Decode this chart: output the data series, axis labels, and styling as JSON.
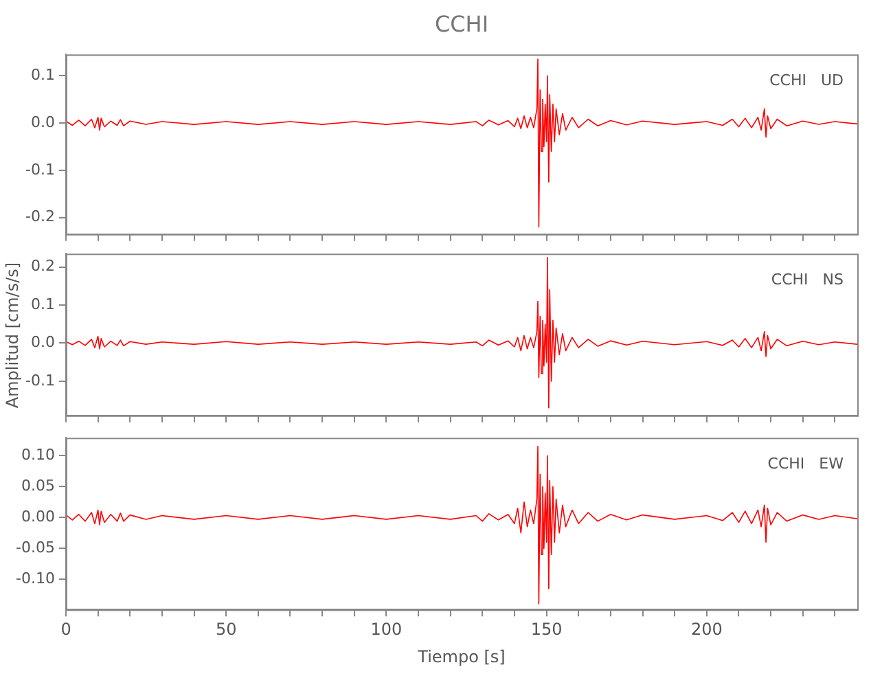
{
  "chart_data": [
    {
      "type": "line",
      "title": "CCHI",
      "annotations": [
        "CCHI   UD"
      ],
      "tick_labels": "y",
      "x": [
        0,
        2,
        4,
        6,
        8,
        9,
        10,
        10.5,
        11,
        12,
        14,
        16,
        17,
        18,
        20,
        25,
        30,
        40,
        50,
        60,
        70,
        80,
        90,
        100,
        110,
        120,
        128,
        130,
        132,
        135,
        138,
        140,
        141,
        142,
        143,
        144,
        145,
        146,
        147,
        147.3,
        147.6,
        148,
        148.4,
        148.8,
        149.2,
        149.6,
        150,
        150.3,
        150.7,
        151,
        151.5,
        152,
        152.5,
        153,
        154,
        155,
        156,
        158,
        160,
        163,
        166,
        170,
        175,
        180,
        190,
        200,
        205,
        208,
        210,
        212,
        214,
        216,
        217,
        218,
        218.5,
        219,
        220,
        222,
        225,
        230,
        235,
        240,
        247
      ],
      "series": [
        {
          "color": "#ff0000",
          "values": [
            0.004,
            -0.005,
            0.006,
            -0.006,
            0.008,
            -0.01,
            0.012,
            -0.015,
            0.01,
            -0.008,
            0.004,
            -0.005,
            0.007,
            -0.006,
            0.004,
            -0.003,
            0.003,
            -0.003,
            0.003,
            -0.003,
            0.003,
            -0.003,
            0.003,
            -0.003,
            0.003,
            -0.003,
            0.003,
            -0.006,
            0.006,
            -0.004,
            0.005,
            -0.008,
            0.01,
            -0.012,
            0.015,
            -0.01,
            0.012,
            -0.01,
            0.03,
            0.135,
            -0.22,
            0.07,
            -0.06,
            0.05,
            -0.05,
            0.04,
            -0.04,
            0.1,
            -0.125,
            0.06,
            -0.06,
            0.04,
            -0.04,
            0.03,
            -0.025,
            0.02,
            -0.015,
            0.012,
            -0.01,
            0.008,
            -0.006,
            0.005,
            -0.004,
            0.004,
            -0.003,
            0.003,
            -0.005,
            0.008,
            -0.008,
            0.01,
            -0.01,
            0.012,
            -0.015,
            0.03,
            -0.03,
            0.015,
            -0.012,
            0.008,
            -0.006,
            0.004,
            -0.003,
            0.003,
            -0.002
          ]
        }
      ],
      "xlim": [
        0,
        247
      ],
      "xticks": [
        0,
        {
          "value": 10,
          "label": null
        },
        {
          "value": 20,
          "label": null
        },
        {
          "value": 30,
          "label": null
        },
        {
          "value": 40,
          "label": null
        },
        50,
        {
          "value": 60,
          "label": null
        },
        {
          "value": 70,
          "label": null
        },
        {
          "value": 80,
          "label": null
        },
        {
          "value": 90,
          "label": null
        },
        100,
        {
          "value": 110,
          "label": null
        },
        {
          "value": 120,
          "label": null
        },
        {
          "value": 130,
          "label": null
        },
        {
          "value": 140,
          "label": null
        },
        150,
        {
          "value": 160,
          "label": null
        },
        {
          "value": 170,
          "label": null
        },
        {
          "value": 180,
          "label": null
        },
        {
          "value": 190,
          "label": null
        },
        200,
        {
          "value": 210,
          "label": null
        },
        {
          "value": 220,
          "label": null
        },
        {
          "value": 230,
          "label": null
        },
        {
          "value": 240,
          "label": null
        }
      ],
      "ylim": [
        -0.235,
        0.145
      ],
      "yticks": [
        {
          "value": -0.2,
          "label": "-0.2"
        },
        {
          "value": -0.1,
          "label": "-0.1"
        },
        {
          "value": 0,
          "label": "0.0"
        },
        {
          "value": 0.1,
          "label": "0.1"
        }
      ]
    },
    {
      "type": "line",
      "ylabel": "Amplitud [cm/s/s]",
      "annotations": [
        "CCHI   NS"
      ],
      "tick_labels": "y",
      "x": [
        0,
        2,
        4,
        6,
        8,
        9,
        10,
        10.5,
        11,
        12,
        14,
        16,
        17,
        18,
        20,
        25,
        30,
        40,
        50,
        60,
        70,
        80,
        90,
        100,
        110,
        120,
        128,
        130,
        132,
        135,
        138,
        140,
        141,
        142,
        143,
        144,
        145,
        146,
        147,
        147.3,
        147.6,
        148,
        148.4,
        148.8,
        149.2,
        149.6,
        150,
        150.3,
        150.7,
        151,
        151.5,
        152,
        152.5,
        153,
        154,
        155,
        156,
        158,
        160,
        163,
        166,
        170,
        175,
        180,
        190,
        200,
        205,
        208,
        210,
        212,
        214,
        216,
        217,
        218,
        218.5,
        219,
        220,
        222,
        225,
        230,
        235,
        240,
        247
      ],
      "series": [
        {
          "color": "#ff0000",
          "values": [
            0.004,
            -0.004,
            0.005,
            -0.006,
            0.01,
            -0.012,
            0.018,
            -0.015,
            0.012,
            -0.01,
            0.005,
            -0.006,
            0.008,
            -0.007,
            0.004,
            -0.003,
            0.003,
            -0.003,
            0.004,
            -0.003,
            0.003,
            -0.003,
            0.003,
            -0.003,
            0.003,
            -0.003,
            0.003,
            -0.007,
            0.008,
            -0.005,
            0.006,
            -0.01,
            0.015,
            -0.02,
            0.02,
            -0.015,
            0.015,
            -0.012,
            0.03,
            0.11,
            -0.09,
            0.07,
            -0.08,
            0.06,
            -0.06,
            0.05,
            -0.05,
            0.225,
            -0.17,
            0.14,
            -0.1,
            0.06,
            -0.05,
            0.04,
            -0.03,
            0.025,
            -0.02,
            0.015,
            -0.012,
            0.01,
            -0.008,
            0.006,
            -0.005,
            0.005,
            -0.004,
            0.004,
            -0.006,
            0.008,
            -0.01,
            0.012,
            -0.012,
            0.015,
            -0.02,
            0.03,
            -0.035,
            0.02,
            -0.015,
            0.01,
            -0.007,
            0.005,
            -0.004,
            0.003,
            -0.003
          ]
        }
      ],
      "xlim": [
        0,
        247
      ],
      "xticks": [
        0,
        {
          "value": 10,
          "label": null
        },
        {
          "value": 20,
          "label": null
        },
        {
          "value": 30,
          "label": null
        },
        {
          "value": 40,
          "label": null
        },
        50,
        {
          "value": 60,
          "label": null
        },
        {
          "value": 70,
          "label": null
        },
        {
          "value": 80,
          "label": null
        },
        {
          "value": 90,
          "label": null
        },
        100,
        {
          "value": 110,
          "label": null
        },
        {
          "value": 120,
          "label": null
        },
        {
          "value": 130,
          "label": null
        },
        {
          "value": 140,
          "label": null
        },
        150,
        {
          "value": 160,
          "label": null
        },
        {
          "value": 170,
          "label": null
        },
        {
          "value": 180,
          "label": null
        },
        {
          "value": 190,
          "label": null
        },
        200,
        {
          "value": 210,
          "label": null
        },
        {
          "value": 220,
          "label": null
        },
        {
          "value": 230,
          "label": null
        },
        {
          "value": 240,
          "label": null
        }
      ],
      "ylim": [
        -0.19,
        0.235
      ],
      "yticks": [
        {
          "value": -0.1,
          "label": "-0.1"
        },
        {
          "value": 0,
          "label": "0.0"
        },
        {
          "value": 0.1,
          "label": "0.1"
        },
        {
          "value": 0.2,
          "label": "0.2"
        }
      ]
    },
    {
      "type": "line",
      "xlabel": "Tiempo [s]",
      "annotations": [
        "CCHI   EW"
      ],
      "x": [
        0,
        2,
        4,
        6,
        8,
        9,
        10,
        10.5,
        11,
        12,
        14,
        16,
        17,
        18,
        20,
        25,
        30,
        40,
        50,
        60,
        70,
        80,
        90,
        100,
        110,
        120,
        128,
        130,
        132,
        135,
        138,
        140,
        141,
        142,
        143,
        144,
        145,
        146,
        147,
        147.3,
        147.6,
        148,
        148.4,
        148.8,
        149.2,
        149.6,
        150,
        150.3,
        150.7,
        151,
        151.5,
        152,
        152.5,
        153,
        154,
        155,
        156,
        158,
        160,
        163,
        166,
        170,
        175,
        180,
        190,
        200,
        205,
        208,
        210,
        212,
        214,
        216,
        217,
        218,
        218.5,
        219,
        220,
        222,
        225,
        230,
        235,
        240,
        247
      ],
      "series": [
        {
          "color": "#ff0000",
          "values": [
            0.004,
            -0.004,
            0.005,
            -0.006,
            0.008,
            -0.01,
            0.012,
            -0.012,
            0.01,
            -0.008,
            0.005,
            -0.006,
            0.007,
            -0.006,
            0.004,
            -0.003,
            0.003,
            -0.003,
            0.003,
            -0.003,
            0.003,
            -0.003,
            0.003,
            -0.003,
            0.003,
            -0.003,
            0.003,
            -0.006,
            0.006,
            -0.004,
            0.005,
            -0.01,
            0.015,
            -0.025,
            0.025,
            -0.015,
            0.012,
            -0.01,
            0.03,
            0.115,
            -0.14,
            0.07,
            -0.06,
            0.05,
            -0.05,
            0.04,
            -0.04,
            0.1,
            -0.115,
            0.06,
            -0.06,
            0.05,
            -0.04,
            0.03,
            -0.025,
            0.02,
            -0.015,
            0.012,
            -0.01,
            0.008,
            -0.006,
            0.005,
            -0.004,
            0.004,
            -0.003,
            0.003,
            -0.005,
            0.008,
            -0.008,
            0.01,
            -0.01,
            0.012,
            -0.015,
            0.02,
            -0.04,
            0.015,
            -0.012,
            0.008,
            -0.006,
            0.004,
            -0.003,
            0.003,
            -0.002
          ]
        }
      ],
      "xlim": [
        0,
        247
      ],
      "xticks": [
        0,
        {
          "value": 10,
          "label": null
        },
        {
          "value": 20,
          "label": null
        },
        {
          "value": 30,
          "label": null
        },
        {
          "value": 40,
          "label": null
        },
        50,
        {
          "value": 60,
          "label": null
        },
        {
          "value": 70,
          "label": null
        },
        {
          "value": 80,
          "label": null
        },
        {
          "value": 90,
          "label": null
        },
        100,
        {
          "value": 110,
          "label": null
        },
        {
          "value": 120,
          "label": null
        },
        {
          "value": 130,
          "label": null
        },
        {
          "value": 140,
          "label": null
        },
        150,
        {
          "value": 160,
          "label": null
        },
        {
          "value": 170,
          "label": null
        },
        {
          "value": 180,
          "label": null
        },
        {
          "value": 190,
          "label": null
        },
        200,
        {
          "value": 210,
          "label": null
        },
        {
          "value": 220,
          "label": null
        },
        {
          "value": 230,
          "label": null
        },
        {
          "value": 240,
          "label": null
        }
      ],
      "ylim": [
        -0.149,
        0.129
      ],
      "yticks": [
        {
          "value": -0.1,
          "label": "-0.10"
        },
        {
          "value": -0.05,
          "label": "-0.05"
        },
        {
          "value": 0,
          "label": "0.00"
        },
        {
          "value": 0.05,
          "label": "0.05"
        },
        {
          "value": 0.1,
          "label": "0.10"
        }
      ]
    }
  ]
}
